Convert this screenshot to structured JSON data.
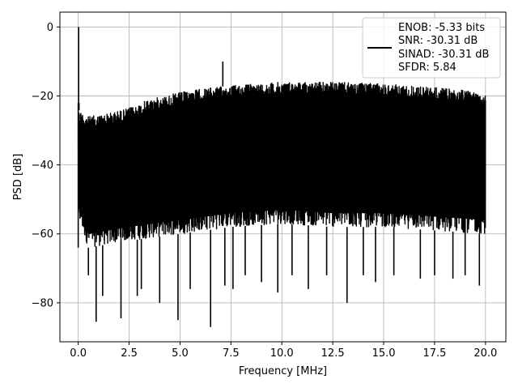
{
  "chart_data": {
    "type": "line",
    "title": "",
    "xlabel": "Frequency [MHz]",
    "ylabel": "PSD [dB]",
    "xlim": [
      -0.9,
      21.0
    ],
    "ylim": [
      -91.3,
      4.3
    ],
    "xticks": [
      0.0,
      2.5,
      5.0,
      7.5,
      10.0,
      12.5,
      15.0,
      17.5,
      20.0
    ],
    "xtick_labels": [
      "0.0",
      "2.5",
      "5.0",
      "7.5",
      "10.0",
      "12.5",
      "15.0",
      "17.5",
      "20.0"
    ],
    "yticks": [
      0,
      -20,
      -40,
      -60,
      -80
    ],
    "ytick_labels": [
      "0",
      "−20",
      "−40",
      "−60",
      "−80"
    ],
    "grid": true,
    "legend_position": "top-right",
    "series": [
      {
        "color": "#000000",
        "x_range": [
          0.0,
          20.0
        ],
        "envelope": {
          "upper": [
            [
              0.0,
              -24
            ],
            [
              0.5,
              -26
            ],
            [
              1.5,
              -25
            ],
            [
              2.5,
              -23.5
            ],
            [
              3.5,
              -21
            ],
            [
              5.0,
              -19
            ],
            [
              6.0,
              -18
            ],
            [
              7.5,
              -17
            ],
            [
              10.0,
              -16
            ],
            [
              12.5,
              -16
            ],
            [
              15.0,
              -16.5
            ],
            [
              17.5,
              -17.5
            ],
            [
              20.0,
              -19
            ]
          ],
          "lower": [
            [
              0.0,
              -56
            ],
            [
              0.5,
              -64
            ],
            [
              1.5,
              -63
            ],
            [
              2.5,
              -62
            ],
            [
              5.0,
              -60
            ],
            [
              7.5,
              -58
            ],
            [
              10.0,
              -57
            ],
            [
              12.5,
              -58
            ],
            [
              15.0,
              -58
            ],
            [
              17.5,
              -59
            ],
            [
              20.0,
              -60
            ]
          ]
        },
        "peaks": [
          [
            0.02,
            0.0
          ],
          [
            7.1,
            -10.0
          ],
          [
            0.04,
            -22.0
          ]
        ],
        "dips": [
          [
            0.5,
            -72
          ],
          [
            0.88,
            -85.5
          ],
          [
            1.2,
            -78
          ],
          [
            2.1,
            -84.5
          ],
          [
            2.9,
            -78
          ],
          [
            3.1,
            -76
          ],
          [
            4.0,
            -80
          ],
          [
            4.9,
            -85
          ],
          [
            5.5,
            -76
          ],
          [
            6.5,
            -87
          ],
          [
            7.2,
            -75
          ],
          [
            7.6,
            -76
          ],
          [
            8.2,
            -72
          ],
          [
            9.0,
            -74
          ],
          [
            9.8,
            -77
          ],
          [
            10.5,
            -72
          ],
          [
            11.3,
            -76
          ],
          [
            12.2,
            -72
          ],
          [
            13.2,
            -80
          ],
          [
            14.0,
            -72
          ],
          [
            14.6,
            -74
          ],
          [
            15.5,
            -72
          ],
          [
            16.8,
            -73
          ],
          [
            17.5,
            -72
          ],
          [
            18.4,
            -73
          ],
          [
            19.0,
            -72
          ],
          [
            19.7,
            -75
          ]
        ]
      }
    ],
    "legend_lines": [
      "ENOB: -5.33 bits",
      "SNR: -30.31 dB",
      "SINAD: -30.31 dB",
      "SFDR: 5.84"
    ]
  }
}
